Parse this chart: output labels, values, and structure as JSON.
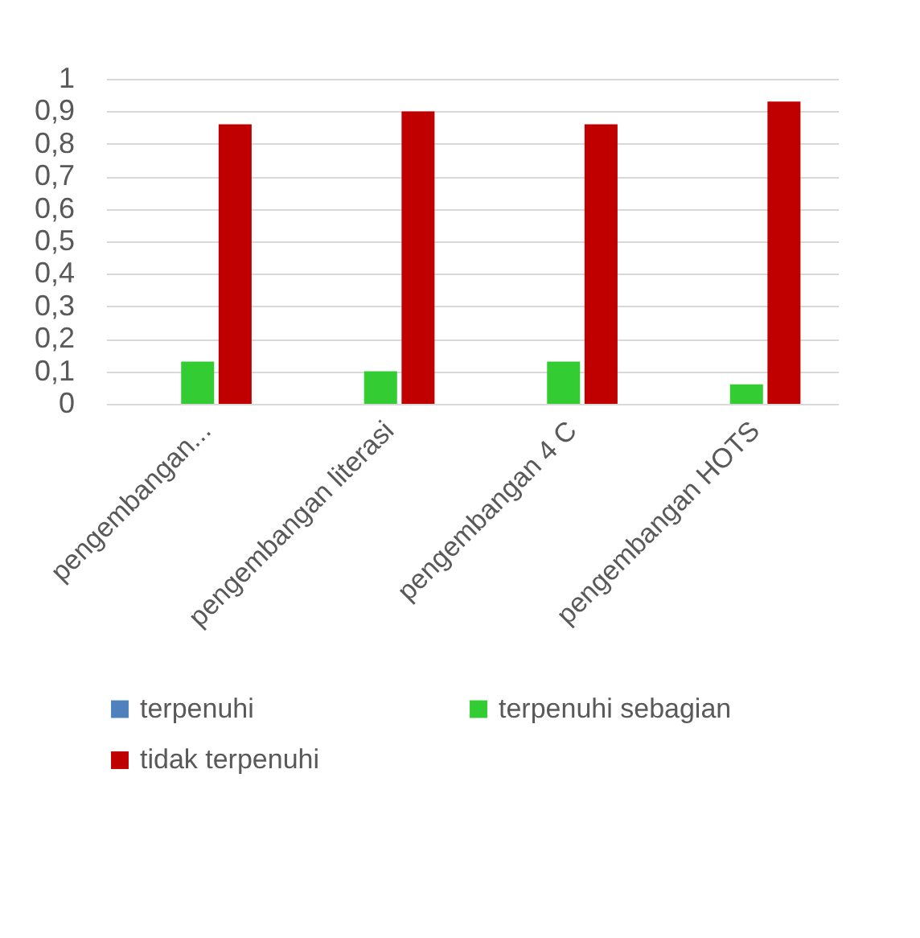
{
  "chart_data": {
    "type": "bar",
    "categories": [
      "pengembangan...",
      "pengembangan literasi",
      "pengembangan 4 C",
      "pengembangan HOTS"
    ],
    "series": [
      {
        "name": "terpenuhi",
        "color": "#4f81bd",
        "values": [
          0,
          0,
          0,
          0
        ]
      },
      {
        "name": "terpenuhi sebagian",
        "color": "#33cc33",
        "values": [
          0.13,
          0.1,
          0.13,
          0.06
        ]
      },
      {
        "name": "tidak terpenuhi",
        "color": "#c00000",
        "values": [
          0.86,
          0.9,
          0.86,
          0.93
        ]
      }
    ],
    "ylim": [
      0,
      1
    ],
    "yticks": [
      0,
      {
        "value": 0.1,
        "label": "0,1"
      },
      {
        "value": 0.2,
        "label": "0,2"
      },
      {
        "value": 0.3,
        "label": "0,3"
      },
      {
        "value": 0.4,
        "label": "0,4"
      },
      {
        "value": 0.5,
        "label": "0,5"
      },
      {
        "value": 0.6,
        "label": "0,6"
      },
      {
        "value": 0.7,
        "label": "0,7"
      },
      {
        "value": 0.8,
        "label": "0,8"
      },
      {
        "value": 0.9,
        "label": "0,9"
      },
      1
    ],
    "grid": "y",
    "legend": "bottom"
  }
}
